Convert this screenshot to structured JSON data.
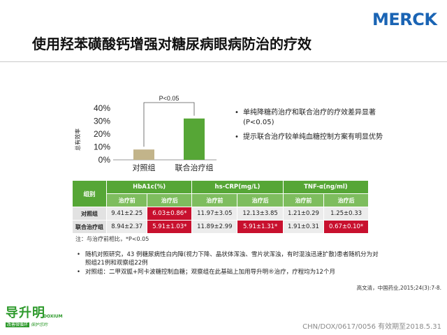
{
  "brand": {
    "merck": "MERCK",
    "dox_cn": "导升明",
    "dox_en": "DOXIUM",
    "dox_tag_a": "改善微循环",
    "dox_tag_b": "保护您的"
  },
  "title": "使用羟苯磺酸钙增强对糖尿病眼病防治的疗效",
  "chart_data": {
    "type": "bar",
    "categories": [
      "对照组",
      "联合治疗组"
    ],
    "values": [
      8,
      32
    ],
    "colors": [
      "#c2b48a",
      "#56a636"
    ],
    "ylabel": "总有效率",
    "yticks": [
      "0%",
      "10%",
      "20%",
      "30%",
      "40%"
    ],
    "ylim": [
      0,
      40
    ],
    "annotation": "P<0.05"
  },
  "right_bullets": [
    "单纯降糖药治疗和联合治疗的疗效差异显著(P<0.05)",
    "提示联合治疗较单纯血糖控制方案有明显优势"
  ],
  "table": {
    "group_header": "组别",
    "col_groups": [
      "HbA1c(%)",
      "hs-CRP(mg/L)",
      "TNF-α(ng/ml)"
    ],
    "sub_headers": [
      "治疗前",
      "治疗后",
      "治疗前",
      "治疗后",
      "治疗前",
      "治疗后"
    ],
    "rows": [
      {
        "label": "对照组",
        "cells": [
          "9.41±2.25",
          "6.03±0.86*",
          "11.97±3.05",
          "12.13±3.85",
          "1.21±0.29",
          "1.25±0.33"
        ]
      },
      {
        "label": "联合治疗组",
        "cells": [
          "8.94±2.37",
          "5.91±1.03*",
          "11.89±2.99",
          "5.91±1.31*",
          "1.91±0.31",
          "0.67±0.10*"
        ]
      }
    ]
  },
  "table_note": "注：与治疗前相比，*P<0.05",
  "lower_bullets": [
    "随机对照研究，43 例糖尿病性白内障(视力下降、晶状体浑浊、雪片状浑浊，有时混浊迅速扩散)患者随机分为对照组21例和观察组22例",
    "对照组：二甲双胍+阿卡波糖控制血糖；观察组在此基础上加用导升明®治疗，疗程均为12个月"
  ],
  "reference": "高文清，中国药业,2015;24(3):7-8.",
  "footer_code": "CHN/DOX/0617/0056 有效期至2018.5.31"
}
